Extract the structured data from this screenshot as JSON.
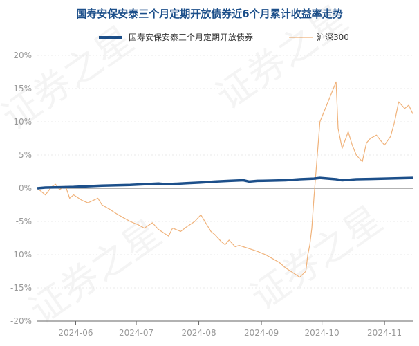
{
  "chart_data": {
    "type": "line",
    "title": "国寿安保安泰三个月定期开放债券近6个月累计收益率走势",
    "xlabel": "",
    "ylabel": "",
    "ylim": [
      -20,
      20
    ],
    "yticks": [
      20,
      15,
      10,
      5,
      0,
      -5,
      -10,
      -15,
      -20
    ],
    "ytick_labels": [
      "20%",
      "15%",
      "10%",
      "5%",
      "0%",
      "-5%",
      "-10%",
      "-15%",
      "-20%"
    ],
    "xlim": [
      "2024-05-13",
      "2024-11-15"
    ],
    "xticks": [
      "2024-06-01",
      "2024-07-01",
      "2024-08-01",
      "2024-09-01",
      "2024-10-01",
      "2024-11-01"
    ],
    "xtick_labels": [
      "2024-06",
      "2024-07",
      "2024-08",
      "2024-09",
      "2024-10",
      "2024-11"
    ],
    "grid": true,
    "legend_position": "top-center",
    "series": [
      {
        "name": "国寿安保安泰三个月定期开放债券",
        "color": "#1c4f8a",
        "points": [
          [
            "2024-05-13",
            0.0
          ],
          [
            "2024-05-17",
            0.1
          ],
          [
            "2024-05-24",
            0.15
          ],
          [
            "2024-05-31",
            0.2
          ],
          [
            "2024-06-07",
            0.3
          ],
          [
            "2024-06-14",
            0.4
          ],
          [
            "2024-06-21",
            0.45
          ],
          [
            "2024-06-28",
            0.5
          ],
          [
            "2024-07-05",
            0.6
          ],
          [
            "2024-07-12",
            0.7
          ],
          [
            "2024-07-16",
            0.6
          ],
          [
            "2024-07-19",
            0.65
          ],
          [
            "2024-07-26",
            0.75
          ],
          [
            "2024-08-02",
            0.85
          ],
          [
            "2024-08-09",
            1.0
          ],
          [
            "2024-08-16",
            1.1
          ],
          [
            "2024-08-23",
            1.2
          ],
          [
            "2024-08-26",
            1.0
          ],
          [
            "2024-08-30",
            1.1
          ],
          [
            "2024-09-06",
            1.15
          ],
          [
            "2024-09-13",
            1.2
          ],
          [
            "2024-09-20",
            1.35
          ],
          [
            "2024-09-27",
            1.45
          ],
          [
            "2024-09-30",
            1.55
          ],
          [
            "2024-10-08",
            1.35
          ],
          [
            "2024-10-11",
            1.2
          ],
          [
            "2024-10-18",
            1.35
          ],
          [
            "2024-10-25",
            1.4
          ],
          [
            "2024-11-01",
            1.45
          ],
          [
            "2024-11-08",
            1.5
          ],
          [
            "2024-11-15",
            1.55
          ]
        ]
      },
      {
        "name": "沪深300",
        "color": "#f0b27a",
        "points": [
          [
            "2024-05-13",
            0.0
          ],
          [
            "2024-05-15",
            -0.5
          ],
          [
            "2024-05-17",
            -1.0
          ],
          [
            "2024-05-20",
            0.2
          ],
          [
            "2024-05-22",
            0.6
          ],
          [
            "2024-05-24",
            -0.2
          ],
          [
            "2024-05-27",
            0.3
          ],
          [
            "2024-05-29",
            -1.5
          ],
          [
            "2024-05-31",
            -1.0
          ],
          [
            "2024-06-04",
            -1.8
          ],
          [
            "2024-06-07",
            -2.2
          ],
          [
            "2024-06-12",
            -1.5
          ],
          [
            "2024-06-14",
            -2.5
          ],
          [
            "2024-06-18",
            -3.2
          ],
          [
            "2024-06-21",
            -3.8
          ],
          [
            "2024-06-25",
            -4.5
          ],
          [
            "2024-06-28",
            -5.0
          ],
          [
            "2024-07-02",
            -5.5
          ],
          [
            "2024-07-05",
            -6.0
          ],
          [
            "2024-07-09",
            -5.2
          ],
          [
            "2024-07-12",
            -6.2
          ],
          [
            "2024-07-15",
            -6.8
          ],
          [
            "2024-07-17",
            -7.2
          ],
          [
            "2024-07-19",
            -6.0
          ],
          [
            "2024-07-23",
            -6.5
          ],
          [
            "2024-07-26",
            -5.8
          ],
          [
            "2024-07-30",
            -5.0
          ],
          [
            "2024-08-02",
            -4.0
          ],
          [
            "2024-08-05",
            -5.5
          ],
          [
            "2024-08-07",
            -6.5
          ],
          [
            "2024-08-09",
            -7.0
          ],
          [
            "2024-08-12",
            -8.0
          ],
          [
            "2024-08-14",
            -8.5
          ],
          [
            "2024-08-16",
            -7.8
          ],
          [
            "2024-08-19",
            -8.8
          ],
          [
            "2024-08-21",
            -8.6
          ],
          [
            "2024-08-23",
            -8.8
          ],
          [
            "2024-08-27",
            -9.2
          ],
          [
            "2024-08-30",
            -9.5
          ],
          [
            "2024-09-03",
            -10.0
          ],
          [
            "2024-09-06",
            -10.5
          ],
          [
            "2024-09-10",
            -11.2
          ],
          [
            "2024-09-13",
            -12.0
          ],
          [
            "2024-09-18",
            -13.0
          ],
          [
            "2024-09-20",
            -13.4
          ],
          [
            "2024-09-23",
            -12.5
          ],
          [
            "2024-09-24",
            -10.0
          ],
          [
            "2024-09-25",
            -8.5
          ],
          [
            "2024-09-26",
            -6.0
          ],
          [
            "2024-09-27",
            -1.5
          ],
          [
            "2024-09-30",
            10.0
          ],
          [
            "2024-10-08",
            16.0
          ],
          [
            "2024-10-09",
            9.0
          ],
          [
            "2024-10-10",
            7.5
          ],
          [
            "2024-10-11",
            6.0
          ],
          [
            "2024-10-14",
            8.5
          ],
          [
            "2024-10-16",
            6.5
          ],
          [
            "2024-10-18",
            5.0
          ],
          [
            "2024-10-21",
            4.0
          ],
          [
            "2024-10-23",
            6.8
          ],
          [
            "2024-10-25",
            7.5
          ],
          [
            "2024-10-28",
            8.0
          ],
          [
            "2024-10-30",
            7.2
          ],
          [
            "2024-11-01",
            6.5
          ],
          [
            "2024-11-04",
            7.8
          ],
          [
            "2024-11-06",
            10.0
          ],
          [
            "2024-11-08",
            13.0
          ],
          [
            "2024-11-11",
            12.0
          ],
          [
            "2024-11-13",
            12.5
          ],
          [
            "2024-11-15",
            11.2
          ]
        ]
      }
    ]
  },
  "watermark": "证券之星"
}
